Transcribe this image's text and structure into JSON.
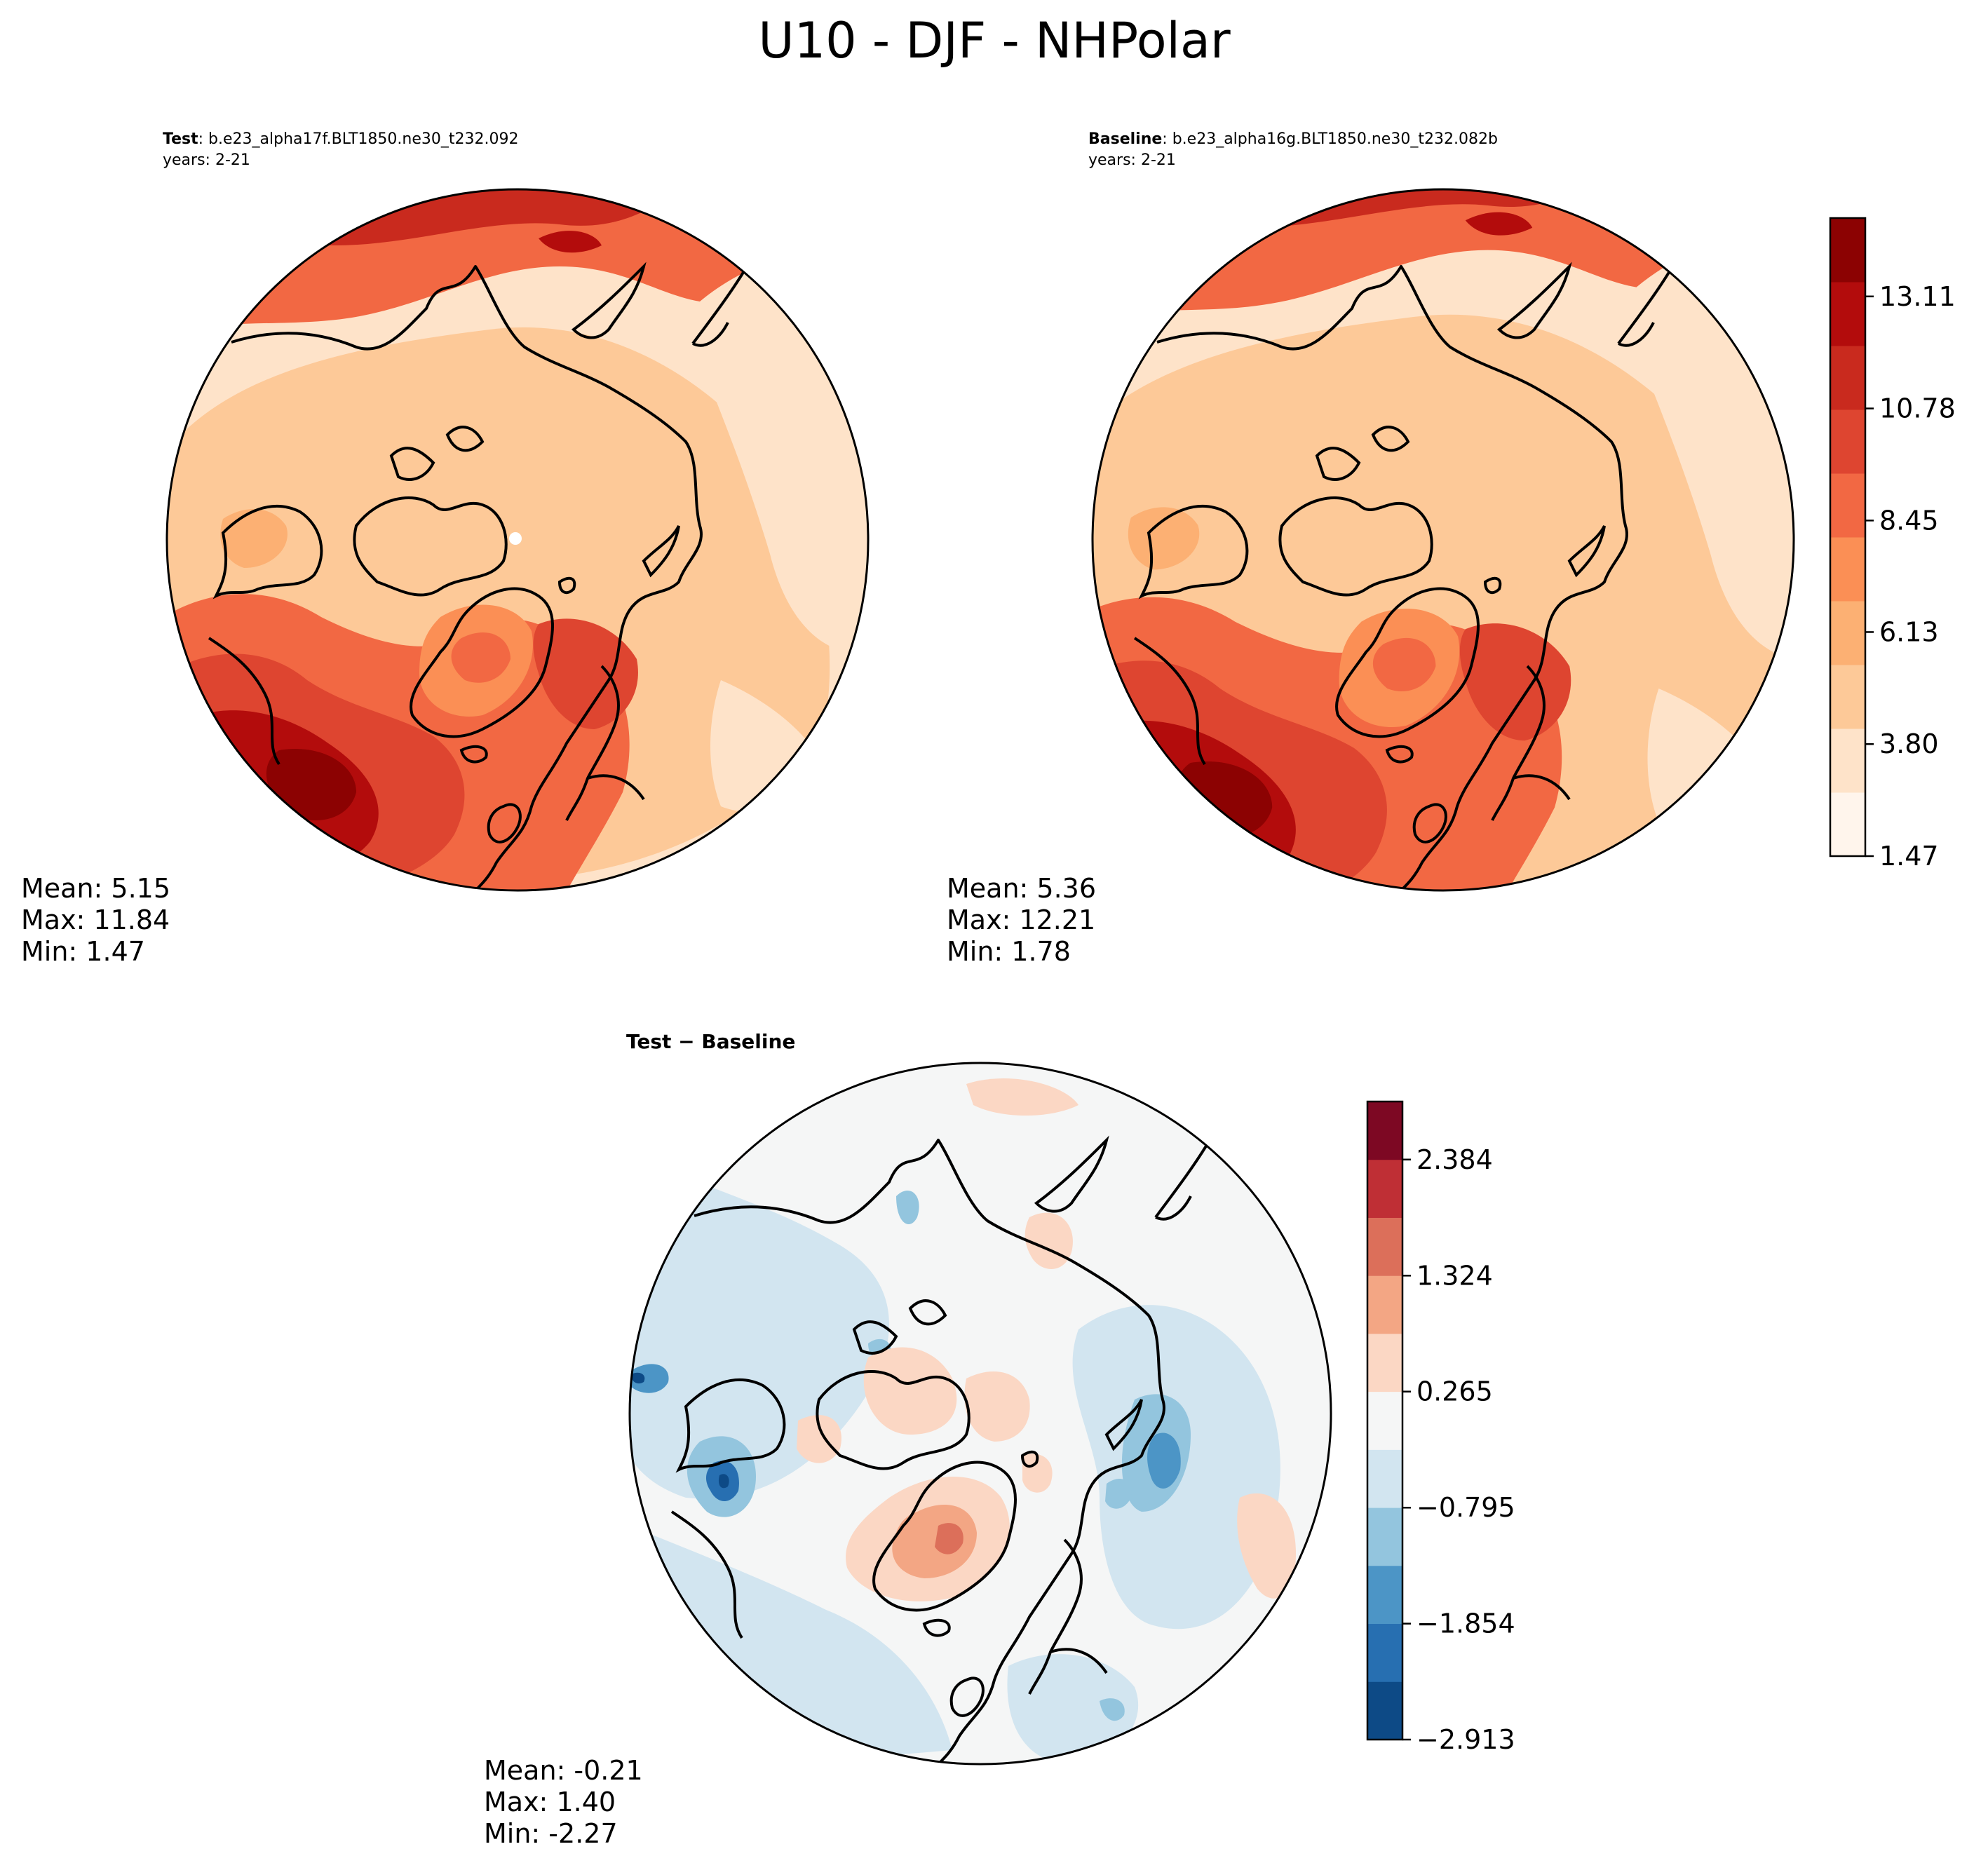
{
  "figure": {
    "title": "U10 - DJF - NHPolar"
  },
  "colors": {
    "seq": [
      "#fff5ec",
      "#fee3c9",
      "#fdc998",
      "#fcb073",
      "#fb8f55",
      "#f26843",
      "#de4530",
      "#c92a1e",
      "#b30c0c",
      "#8c0202"
    ],
    "div": [
      "#0d4a86",
      "#276fb1",
      "#4c95c6",
      "#93c5de",
      "#d2e5f0",
      "#f5f6f6",
      "#fbd7c4",
      "#f3a684",
      "#dc6f5a",
      "#bf2f35",
      "#7d0823"
    ],
    "land_outline": "#000000"
  },
  "chart_data": [
    {
      "type": "heatmap",
      "projection": "north polar stereographic",
      "title_bold": "Test",
      "title_rest": ": b.e23_alpha17f.BLT1850.ne30_t232.092",
      "subtitle": "years: 2-21",
      "stats": {
        "mean": "Mean:  5.15",
        "max": "Max: 11.84",
        "min": "Min:  1.47"
      },
      "values": {
        "mean": 5.15,
        "max": 11.84,
        "min": 1.47
      },
      "colorscale": "sequential"
    },
    {
      "type": "heatmap",
      "projection": "north polar stereographic",
      "title_bold": "Baseline",
      "title_rest": ": b.e23_alpha16g.BLT1850.ne30_t232.082b",
      "subtitle": "years: 2-21",
      "stats": {
        "mean": "Mean:  5.36",
        "max": "Max: 12.21",
        "min": "Min:  1.78"
      },
      "values": {
        "mean": 5.36,
        "max": 12.21,
        "min": 1.78
      },
      "colorscale": "sequential",
      "colorbar": {
        "tick_labels": [
          "13.11",
          "10.78",
          "8.45",
          "6.13",
          "3.80",
          "1.47"
        ],
        "ticks": [
          13.11,
          10.78,
          8.45,
          6.13,
          3.8,
          1.47
        ],
        "range": [
          1.47,
          14.74
        ]
      }
    },
    {
      "type": "heatmap",
      "projection": "north polar stereographic",
      "title": "Test − Baseline",
      "stats": {
        "mean": "Mean: -0.21",
        "max": "Max:  1.40",
        "min": "Min: -2.27"
      },
      "values": {
        "mean": -0.21,
        "max": 1.4,
        "min": -2.27
      },
      "colorscale": "diverging",
      "colorbar": {
        "tick_labels": [
          "2.384",
          "1.324",
          "0.265",
          "−0.795",
          "−1.854",
          "−2.913"
        ],
        "ticks": [
          2.384,
          1.324,
          0.265,
          -0.795,
          -1.854,
          -2.913
        ],
        "range": [
          -2.913,
          2.914
        ]
      }
    }
  ]
}
